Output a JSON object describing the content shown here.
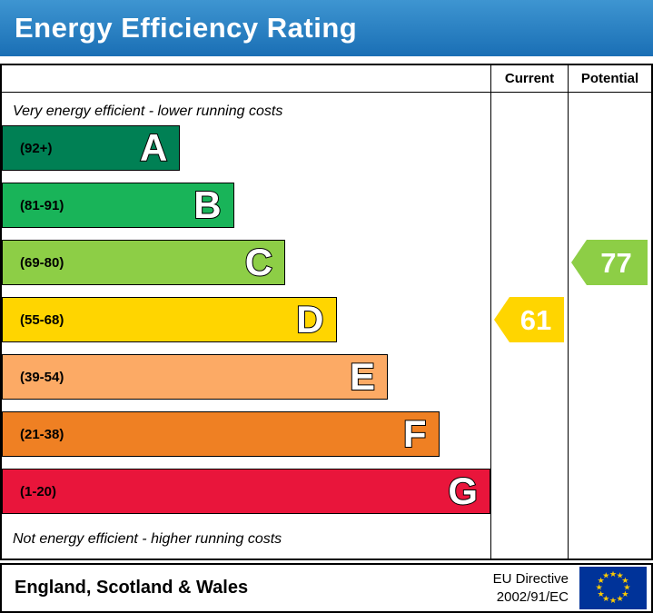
{
  "header": {
    "title": "Energy Efficiency Rating"
  },
  "table_headers": {
    "current": "Current",
    "potential": "Potential"
  },
  "chart_data": {
    "type": "bar",
    "title": "Energy Efficiency Rating",
    "top_annotation": "Very energy efficient - lower running costs",
    "bottom_annotation": "Not energy efficient - higher running costs",
    "bands": [
      {
        "letter": "A",
        "range": "(92+)",
        "color": "#008054",
        "width_pct": 36.5
      },
      {
        "letter": "B",
        "range": "(81-91)",
        "color": "#19b459",
        "width_pct": 47.5
      },
      {
        "letter": "C",
        "range": "(69-80)",
        "color": "#8dce46",
        "width_pct": 58.0
      },
      {
        "letter": "D",
        "range": "(55-68)",
        "color": "#ffd500",
        "width_pct": 68.5
      },
      {
        "letter": "E",
        "range": "(39-54)",
        "color": "#fcaa65",
        "width_pct": 79.0
      },
      {
        "letter": "F",
        "range": "(21-38)",
        "color": "#ef8023",
        "width_pct": 89.5
      },
      {
        "letter": "G",
        "range": "(1-20)",
        "color": "#e9153b",
        "width_pct": 100
      }
    ],
    "current": {
      "value": "61",
      "band": "D",
      "band_index": 3,
      "color": "#ffd500"
    },
    "potential": {
      "value": "77",
      "band": "C",
      "band_index": 2,
      "color": "#8dce46"
    }
  },
  "footer": {
    "region": "England, Scotland & Wales",
    "directive_line1": "EU Directive",
    "directive_line2": "2002/91/EC",
    "eu_flag": {
      "background": "#003399",
      "star_color": "#ffcc00",
      "star_count": 12
    }
  }
}
